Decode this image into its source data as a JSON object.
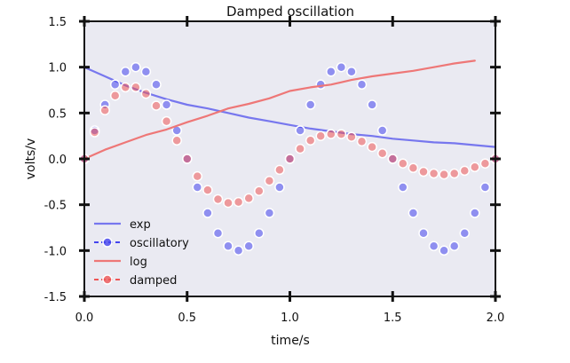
{
  "chart_data": {
    "type": "line",
    "title": "Damped oscillation",
    "xlabel": "time/s",
    "ylabel": "volts/v",
    "xlim": [
      0.0,
      2.0
    ],
    "ylim": [
      -1.5,
      1.5
    ],
    "xticks": [
      0.0,
      0.5,
      1.0,
      1.5,
      2.0
    ],
    "xtick_labels": [
      "0.0",
      "0.5",
      "1.0",
      "1.5",
      "2.0"
    ],
    "yticks": [
      1.5,
      1.0,
      0.5,
      0.0,
      -0.5,
      -1.0,
      -1.5
    ],
    "ytick_labels": [
      "1.5",
      "1.0",
      "0.5",
      "0.0",
      "-0.5",
      "-1.0",
      "-1.5"
    ],
    "grid": false,
    "background": "#eaeaf2",
    "legend_position": "lower-left",
    "series": [
      {
        "name": "exp",
        "style": "line",
        "color": "#7777ee",
        "x": [
          0.0,
          0.1,
          0.2,
          0.3,
          0.4,
          0.5,
          0.6,
          0.7,
          0.8,
          0.9,
          1.0,
          1.1,
          1.2,
          1.3,
          1.4,
          1.5,
          1.6,
          1.7,
          1.8,
          1.9,
          2.0
        ],
        "y": [
          1.0,
          0.9,
          0.8,
          0.72,
          0.65,
          0.59,
          0.55,
          0.5,
          0.45,
          0.41,
          0.37,
          0.33,
          0.3,
          0.27,
          0.25,
          0.22,
          0.2,
          0.18,
          0.17,
          0.15,
          0.13
        ]
      },
      {
        "name": "oscillatory",
        "style": "markers",
        "color": "#4444ee",
        "x": [
          0.0,
          0.05,
          0.1,
          0.15,
          0.2,
          0.25,
          0.3,
          0.35,
          0.4,
          0.45,
          0.5,
          0.55,
          0.6,
          0.65,
          0.7,
          0.75,
          0.8,
          0.85,
          0.9,
          0.95,
          1.0,
          1.05,
          1.1,
          1.15,
          1.2,
          1.25,
          1.3,
          1.35,
          1.4,
          1.45,
          1.5,
          1.55,
          1.6,
          1.65,
          1.7,
          1.75,
          1.8,
          1.85,
          1.9,
          1.95,
          2.0
        ],
        "y": [
          0.0,
          0.31,
          0.59,
          0.81,
          0.95,
          1.0,
          0.95,
          0.81,
          0.59,
          0.31,
          0.0,
          -0.31,
          -0.59,
          -0.81,
          -0.95,
          -1.0,
          -0.95,
          -0.81,
          -0.59,
          -0.31,
          0.0,
          0.31,
          0.59,
          0.81,
          0.95,
          1.0,
          0.95,
          0.81,
          0.59,
          0.31,
          0.0,
          -0.31,
          -0.59,
          -0.81,
          -0.95,
          -1.0,
          -0.95,
          -0.81,
          -0.59,
          -0.31,
          0.0
        ]
      },
      {
        "name": "log",
        "style": "line",
        "color": "#ee7777",
        "x": [
          0.0,
          0.1,
          0.2,
          0.3,
          0.4,
          0.5,
          0.6,
          0.7,
          0.8,
          0.9,
          1.0,
          1.1,
          1.2,
          1.3,
          1.4,
          1.5,
          1.6,
          1.7,
          1.8,
          1.9
        ],
        "y": [
          0.0,
          0.1,
          0.18,
          0.26,
          0.32,
          0.4,
          0.47,
          0.55,
          0.6,
          0.66,
          0.74,
          0.78,
          0.81,
          0.86,
          0.9,
          0.93,
          0.96,
          1.0,
          1.04,
          1.07
        ]
      },
      {
        "name": "damped",
        "style": "markers",
        "color": "#ee5555",
        "x": [
          0.0,
          0.05,
          0.1,
          0.15,
          0.2,
          0.25,
          0.3,
          0.35,
          0.4,
          0.45,
          0.5,
          0.55,
          0.6,
          0.65,
          0.7,
          0.75,
          0.8,
          0.85,
          0.9,
          0.95,
          1.0,
          1.05,
          1.1,
          1.15,
          1.2,
          1.25,
          1.3,
          1.35,
          1.4,
          1.45,
          1.5,
          1.55,
          1.6,
          1.65,
          1.7,
          1.75,
          1.8,
          1.85,
          1.9,
          1.95,
          2.0
        ],
        "y": [
          0.0,
          0.29,
          0.53,
          0.69,
          0.78,
          0.78,
          0.71,
          0.58,
          0.41,
          0.2,
          0.0,
          -0.19,
          -0.34,
          -0.44,
          -0.48,
          -0.47,
          -0.43,
          -0.35,
          -0.24,
          -0.12,
          0.0,
          0.11,
          0.2,
          0.25,
          0.27,
          0.27,
          0.24,
          0.19,
          0.13,
          0.06,
          0.0,
          -0.05,
          -0.1,
          -0.14,
          -0.16,
          -0.17,
          -0.16,
          -0.13,
          -0.09,
          -0.05,
          0.0
        ]
      }
    ]
  }
}
